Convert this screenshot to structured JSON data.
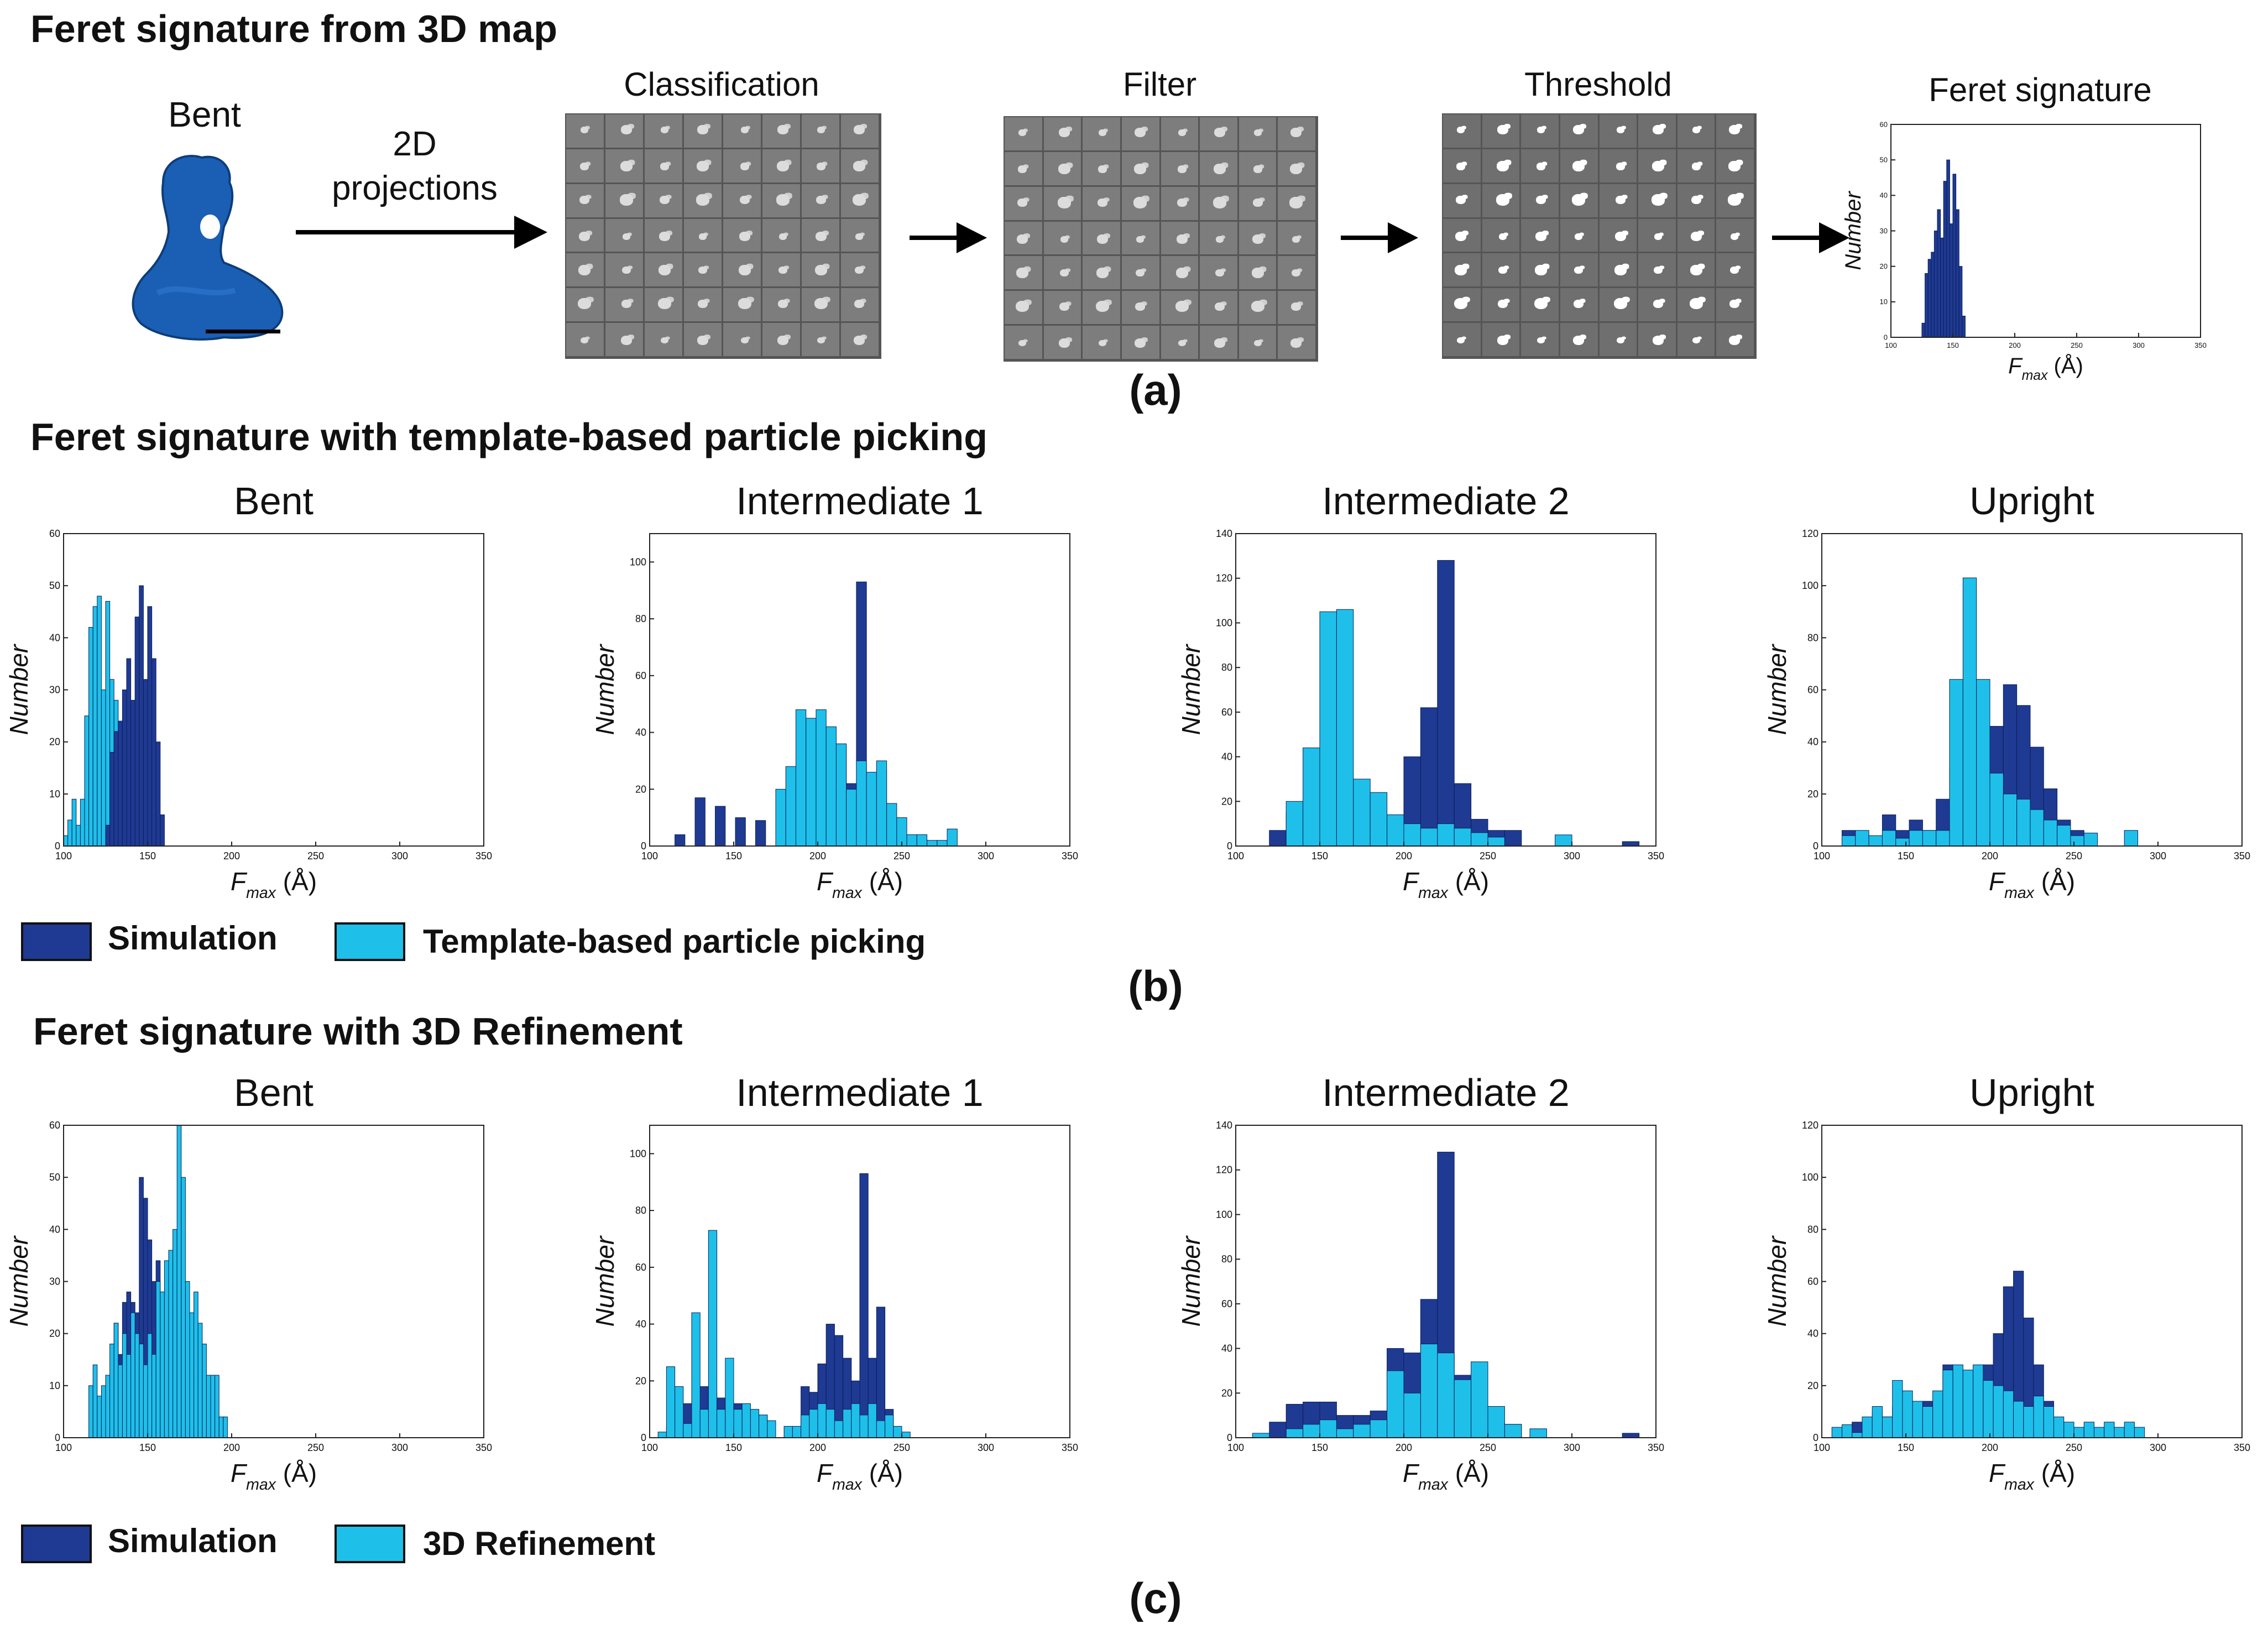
{
  "colors": {
    "simulation": "#1f3a93",
    "observed": "#1ec0ea",
    "bg": "#ffffff",
    "map_blue": "#1a5fb4"
  },
  "section_a": {
    "title": "Feret signature from 3D map",
    "map_label": "Bent",
    "arrow_label_line1": "2D",
    "arrow_label_line2": "projections",
    "steps": [
      "Classification",
      "Filter",
      "Threshold",
      "Feret signature"
    ],
    "panel_label": "(a)"
  },
  "section_b": {
    "title": "Feret signature with template-based particle picking",
    "panel_label": "(b)",
    "legend": {
      "sim_label": "Simulation",
      "obs_label": "Template-based particle picking"
    }
  },
  "section_c": {
    "title": "Feret signature with 3D Refinement",
    "panel_label": "(c)",
    "legend": {
      "sim_label": "Simulation",
      "obs_label": "3D Refinement"
    }
  },
  "chart_data": [
    {
      "id": "a-feret",
      "type": "bar",
      "title": "Feret signature",
      "xlabel": "F_max (Å)",
      "ylabel": "Number",
      "xlim": [
        100,
        350
      ],
      "ylim": [
        0,
        60
      ],
      "xticks": [
        100,
        150,
        200,
        250,
        300,
        350
      ],
      "yticks": [
        0,
        10,
        20,
        30,
        40,
        50,
        60
      ],
      "bin_width": 2.5,
      "series": [
        {
          "name": "Simulation",
          "x": [
            125,
            127.5,
            130,
            132.5,
            135,
            137.5,
            140,
            142.5,
            145,
            147.5,
            150,
            152.5,
            155,
            157.5
          ],
          "values": [
            4,
            18,
            22,
            24,
            30,
            36,
            28,
            44,
            50,
            32,
            46,
            36,
            20,
            6
          ]
        }
      ]
    },
    {
      "id": "b-bent",
      "type": "bar",
      "title": "Bent",
      "xlabel": "F_max (Å)",
      "ylabel": "Number",
      "xlim": [
        100,
        350
      ],
      "ylim": [
        0,
        60
      ],
      "xticks": [
        100,
        150,
        200,
        250,
        300,
        350
      ],
      "yticks": [
        0,
        10,
        20,
        30,
        40,
        50,
        60
      ],
      "bin_width": 2.5,
      "series": [
        {
          "name": "Template-based particle picking",
          "x": [
            100,
            102.5,
            105,
            107.5,
            110,
            112.5,
            115,
            117.5,
            120,
            122.5,
            125,
            127.5,
            130,
            132.5,
            135,
            137.5,
            140
          ],
          "values": [
            2,
            5,
            9,
            4,
            9,
            25,
            42,
            46,
            48,
            30,
            47,
            32,
            28,
            10,
            22,
            8,
            4
          ]
        },
        {
          "name": "Simulation",
          "x": [
            125,
            127.5,
            130,
            132.5,
            135,
            137.5,
            140,
            142.5,
            145,
            147.5,
            150,
            152.5,
            155,
            157.5
          ],
          "values": [
            4,
            18,
            22,
            24,
            30,
            36,
            28,
            44,
            50,
            32,
            46,
            36,
            20,
            6
          ]
        }
      ]
    },
    {
      "id": "b-int1",
      "type": "bar",
      "title": "Intermediate 1",
      "xlabel": "F_max (Å)",
      "ylabel": "Number",
      "xlim": [
        100,
        350
      ],
      "ylim": [
        0,
        110
      ],
      "xticks": [
        100,
        150,
        200,
        250,
        300,
        350
      ],
      "yticks": [
        0,
        20,
        40,
        60,
        80,
        100
      ],
      "bin_width": 6,
      "series": [
        {
          "name": "Simulation",
          "x": [
            115,
            127,
            139,
            151,
            163,
            175,
            187,
            199,
            211,
            217,
            223,
            229,
            235
          ],
          "values": [
            4,
            17,
            14,
            10,
            9,
            8,
            20,
            25,
            35,
            22,
            93,
            25,
            27
          ]
        },
        {
          "name": "Template-based particle picking",
          "x": [
            175,
            181,
            187,
            193,
            199,
            205,
            211,
            217,
            223,
            229,
            235,
            241,
            247,
            253,
            259,
            265,
            271,
            277
          ],
          "values": [
            20,
            28,
            48,
            45,
            48,
            42,
            36,
            20,
            30,
            26,
            30,
            15,
            10,
            4,
            4,
            2,
            2,
            6
          ]
        }
      ]
    },
    {
      "id": "b-int2",
      "type": "bar",
      "title": "Intermediate 2",
      "xlabel": "F_max (Å)",
      "ylabel": "Number",
      "xlim": [
        100,
        350
      ],
      "ylim": [
        0,
        140
      ],
      "xticks": [
        100,
        150,
        200,
        250,
        300,
        350
      ],
      "yticks": [
        0,
        20,
        40,
        60,
        80,
        100,
        120,
        140
      ],
      "bin_width": 10,
      "series": [
        {
          "name": "Simulation",
          "x": [
            120,
            130,
            140,
            150,
            160,
            170,
            180,
            190,
            200,
            210,
            220,
            230,
            240,
            250,
            260,
            330
          ],
          "values": [
            7,
            15,
            16,
            17,
            15,
            10,
            10,
            8,
            40,
            62,
            128,
            28,
            12,
            7,
            7,
            2
          ]
        },
        {
          "name": "Template-based particle picking",
          "x": [
            130,
            140,
            150,
            160,
            170,
            180,
            190,
            200,
            210,
            220,
            230,
            240,
            250,
            290
          ],
          "values": [
            20,
            44,
            105,
            106,
            30,
            24,
            14,
            10,
            8,
            10,
            8,
            6,
            4,
            5
          ]
        }
      ]
    },
    {
      "id": "b-upright",
      "type": "bar",
      "title": "Upright",
      "xlabel": "F_max (Å)",
      "ylabel": "Number",
      "xlim": [
        100,
        350
      ],
      "ylim": [
        0,
        120
      ],
      "xticks": [
        100,
        150,
        200,
        250,
        300,
        350
      ],
      "yticks": [
        0,
        20,
        40,
        60,
        80,
        100,
        120
      ],
      "bin_width": 8,
      "series": [
        {
          "name": "Simulation",
          "x": [
            112,
            120,
            128,
            136,
            144,
            152,
            160,
            168,
            176,
            184,
            192,
            200,
            208,
            216,
            224,
            232,
            240,
            248
          ],
          "values": [
            6,
            5,
            3,
            12,
            6,
            10,
            6,
            18,
            30,
            34,
            40,
            46,
            62,
            54,
            38,
            22,
            10,
            6
          ]
        },
        {
          "name": "Template-based particle picking",
          "x": [
            112,
            120,
            128,
            136,
            144,
            152,
            160,
            168,
            176,
            184,
            192,
            200,
            208,
            216,
            224,
            232,
            240,
            248,
            256,
            280
          ],
          "values": [
            4,
            6,
            4,
            6,
            3,
            6,
            6,
            6,
            64,
            103,
            64,
            28,
            20,
            18,
            14,
            10,
            8,
            4,
            5,
            6
          ]
        }
      ]
    },
    {
      "id": "c-bent",
      "type": "bar",
      "title": "Bent",
      "xlabel": "F_max (Å)",
      "ylabel": "Number",
      "xlim": [
        100,
        350
      ],
      "ylim": [
        0,
        60
      ],
      "xticks": [
        100,
        150,
        200,
        250,
        300,
        350
      ],
      "yticks": [
        0,
        10,
        20,
        30,
        40,
        50,
        60
      ],
      "bin_width": 2.5,
      "series": [
        {
          "name": "Simulation",
          "x": [
            120,
            122.5,
            125,
            127.5,
            130,
            132.5,
            135,
            137.5,
            140,
            142.5,
            145,
            147.5,
            150,
            152.5,
            155,
            157.5,
            160
          ],
          "values": [
            4,
            3,
            8,
            10,
            22,
            16,
            26,
            28,
            26,
            24,
            50,
            46,
            38,
            30,
            34,
            20,
            16
          ]
        },
        {
          "name": "3D Refinement",
          "x": [
            115,
            117.5,
            120,
            122.5,
            125,
            127.5,
            130,
            132.5,
            135,
            137.5,
            140,
            142.5,
            145,
            147.5,
            150,
            152.5,
            155,
            157.5,
            160,
            162.5,
            165,
            167.5,
            170,
            172.5,
            175,
            177.5,
            180,
            182.5,
            185,
            187.5,
            190,
            192.5,
            195
          ],
          "values": [
            10,
            14,
            8,
            10,
            12,
            18,
            22,
            14,
            20,
            16,
            24,
            20,
            18,
            14,
            20,
            16,
            30,
            28,
            34,
            36,
            40,
            60,
            50,
            30,
            24,
            28,
            22,
            18,
            12,
            12,
            12,
            4,
            4
          ]
        }
      ]
    },
    {
      "id": "c-int1",
      "type": "bar",
      "title": "Intermediate 1",
      "xlabel": "F_max (Å)",
      "ylabel": "Number",
      "xlim": [
        100,
        350
      ],
      "ylim": [
        0,
        110
      ],
      "xticks": [
        100,
        150,
        200,
        250,
        300,
        350
      ],
      "yticks": [
        0,
        20,
        40,
        60,
        80,
        100
      ],
      "bin_width": 5,
      "series": [
        {
          "name": "Simulation",
          "x": [
            110,
            115,
            120,
            125,
            130,
            135,
            140,
            145,
            150,
            155,
            160,
            165,
            180,
            185,
            190,
            195,
            200,
            205,
            210,
            215,
            220,
            225,
            230,
            235,
            240,
            245
          ],
          "values": [
            4,
            10,
            12,
            8,
            18,
            16,
            14,
            14,
            12,
            10,
            6,
            8,
            4,
            4,
            18,
            16,
            26,
            40,
            36,
            28,
            20,
            93,
            28,
            46,
            10,
            4
          ]
        },
        {
          "name": "3D Refinement",
          "x": [
            105,
            110,
            115,
            120,
            125,
            130,
            135,
            140,
            145,
            150,
            155,
            160,
            165,
            170,
            180,
            185,
            190,
            195,
            200,
            205,
            210,
            215,
            220,
            225,
            230,
            235,
            240,
            245,
            250
          ],
          "values": [
            2,
            25,
            18,
            5,
            44,
            10,
            73,
            10,
            28,
            10,
            12,
            10,
            8,
            6,
            4,
            4,
            8,
            10,
            12,
            10,
            6,
            10,
            12,
            8,
            12,
            6,
            8,
            4,
            2
          ]
        }
      ]
    },
    {
      "id": "c-int2",
      "type": "bar",
      "title": "Intermediate 2",
      "xlabel": "F_max (Å)",
      "ylabel": "Number",
      "xlim": [
        100,
        350
      ],
      "ylim": [
        0,
        140
      ],
      "xticks": [
        100,
        150,
        200,
        250,
        300,
        350
      ],
      "yticks": [
        0,
        20,
        40,
        60,
        80,
        100,
        120,
        140
      ],
      "bin_width": 10,
      "series": [
        {
          "name": "Simulation",
          "x": [
            120,
            130,
            140,
            150,
            160,
            170,
            180,
            190,
            200,
            210,
            220,
            230,
            240,
            250,
            260,
            330
          ],
          "values": [
            7,
            15,
            16,
            16,
            10,
            10,
            12,
            40,
            38,
            62,
            128,
            28,
            12,
            7,
            6,
            2
          ]
        },
        {
          "name": "3D Refinement",
          "x": [
            110,
            130,
            140,
            150,
            160,
            170,
            180,
            190,
            200,
            210,
            220,
            230,
            240,
            250,
            260,
            275
          ],
          "values": [
            2,
            4,
            6,
            8,
            4,
            6,
            8,
            30,
            20,
            42,
            38,
            26,
            34,
            14,
            6,
            4
          ]
        }
      ]
    },
    {
      "id": "c-upright",
      "type": "bar",
      "title": "Upright",
      "xlabel": "F_max (Å)",
      "ylabel": "Number",
      "xlim": [
        100,
        350
      ],
      "ylim": [
        0,
        120
      ],
      "xticks": [
        100,
        150,
        200,
        250,
        300,
        350
      ],
      "yticks": [
        0,
        20,
        40,
        60,
        80,
        100,
        120
      ],
      "bin_width": 6,
      "series": [
        {
          "name": "Simulation",
          "x": [
            112,
            118,
            124,
            130,
            136,
            142,
            148,
            154,
            160,
            166,
            172,
            178,
            184,
            190,
            196,
            202,
            208,
            214,
            220,
            226,
            232,
            238,
            244
          ],
          "values": [
            4,
            6,
            4,
            10,
            8,
            12,
            6,
            10,
            14,
            12,
            28,
            26,
            18,
            12,
            28,
            40,
            58,
            64,
            46,
            28,
            14,
            6,
            4
          ]
        },
        {
          "name": "3D Refinement",
          "x": [
            106,
            112,
            118,
            124,
            130,
            136,
            142,
            148,
            154,
            160,
            166,
            172,
            178,
            184,
            190,
            196,
            202,
            208,
            214,
            220,
            226,
            232,
            238,
            244,
            250,
            256,
            262,
            268,
            274,
            280,
            286
          ],
          "values": [
            4,
            5,
            2,
            8,
            12,
            8,
            22,
            18,
            14,
            12,
            18,
            26,
            28,
            26,
            28,
            22,
            20,
            18,
            14,
            12,
            16,
            12,
            8,
            6,
            4,
            6,
            4,
            6,
            4,
            6,
            4
          ]
        }
      ]
    }
  ]
}
